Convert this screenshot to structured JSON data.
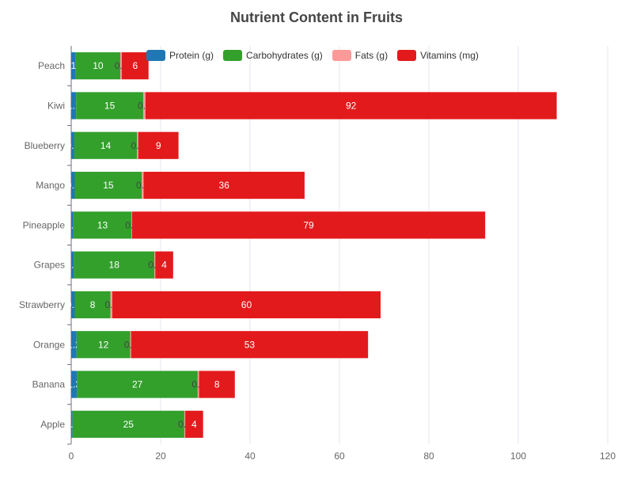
{
  "chart_data": {
    "type": "bar",
    "orientation": "horizontal",
    "stacked": true,
    "title": "Nutrient Content in Fruits",
    "categories": [
      "Apple",
      "Banana",
      "Orange",
      "Strawberry",
      "Grapes",
      "Pineapple",
      "Mango",
      "Blueberry",
      "Kiwi",
      "Peach"
    ],
    "series": [
      {
        "name": "Protein (g)",
        "color": "#1f77b4",
        "values": [
          0.3,
          1.3,
          1.2,
          0.8,
          0.6,
          0.5,
          0.8,
          0.7,
          1.1,
          1
        ]
      },
      {
        "name": "Carbohydrates (g)",
        "color": "#33a02c",
        "values": [
          25,
          27,
          12,
          8,
          18,
          13,
          15,
          14,
          15,
          10
        ]
      },
      {
        "name": "Fats (g)",
        "color": "#fb9a99",
        "values": [
          0.2,
          0.3,
          0.2,
          0.4,
          0.2,
          0.1,
          0.4,
          0.3,
          0.5,
          0.3
        ]
      },
      {
        "name": "Vitamins (mg)",
        "color": "#e31a1c",
        "values": [
          4,
          8,
          53,
          60,
          4,
          79,
          36,
          9,
          92,
          6
        ]
      }
    ],
    "xlim": [
      0,
      120
    ],
    "xticks": [
      0,
      20,
      40,
      60,
      80,
      100,
      120
    ],
    "grid": true,
    "legend_position": "top"
  }
}
